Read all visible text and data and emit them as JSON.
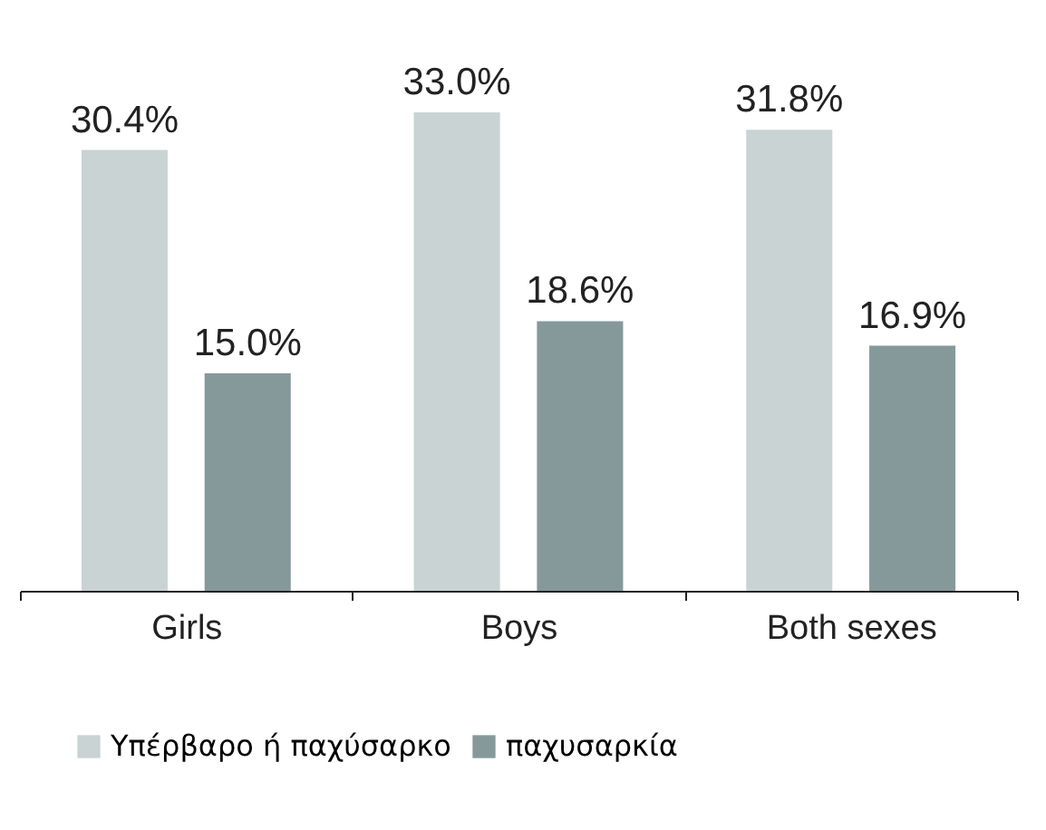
{
  "chart_data": {
    "type": "bar",
    "categories": [
      "Girls",
      "Boys",
      "Both sexes"
    ],
    "series": [
      {
        "name": "Υπέρβαρο ή παχύσαρκο",
        "color": "#c9d3d3",
        "values": [
          30.4,
          33.0,
          31.8
        ],
        "value_labels": [
          "30.4%",
          "33.0%",
          "31.8%"
        ]
      },
      {
        "name": "παχυσαρκία",
        "color": "#86999a",
        "values": [
          15.0,
          18.6,
          16.9
        ],
        "value_labels": [
          "15.0%",
          "18.6%",
          "16.9%"
        ]
      }
    ],
    "legend": "bottom",
    "grid": false
  }
}
